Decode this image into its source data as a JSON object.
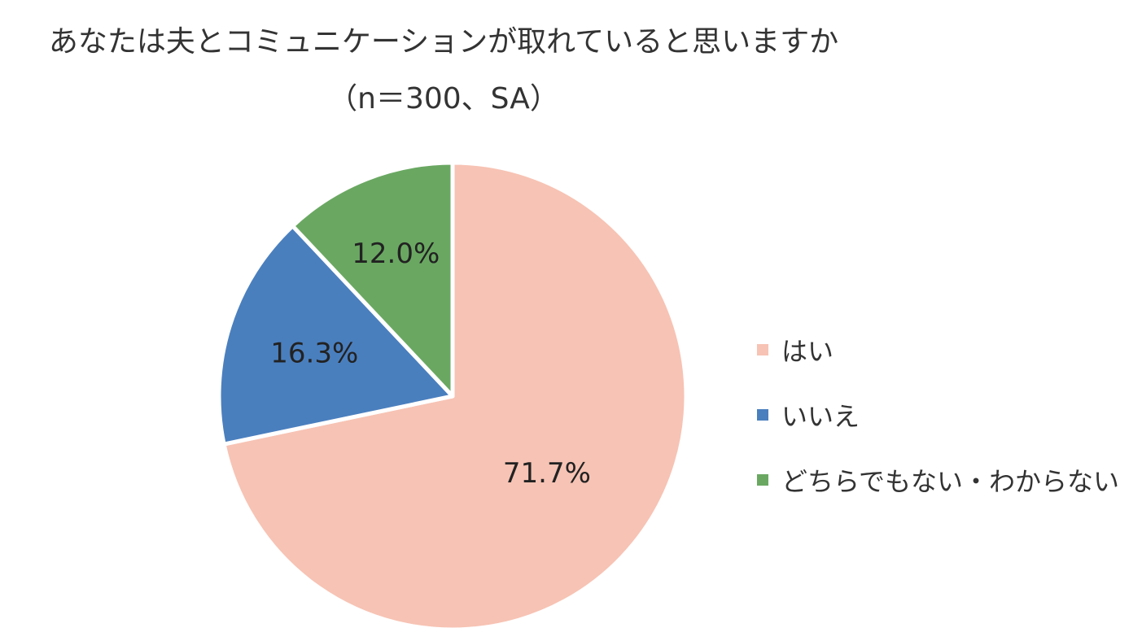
{
  "chart_data": {
    "type": "pie",
    "title": "あなたは夫とコミュニケーションが取れていると思いますか",
    "subtitle": "（n＝300、SA）",
    "categories": [
      "はい",
      "いいえ",
      "どちらでもない・わからない"
    ],
    "values": [
      71.7,
      16.3,
      12.0
    ],
    "value_labels": [
      "71.7%",
      "16.3%",
      "12.0%"
    ],
    "colors": [
      "#f7c3b4",
      "#4a7fbe",
      "#6aa862"
    ],
    "legend_position": "right"
  }
}
